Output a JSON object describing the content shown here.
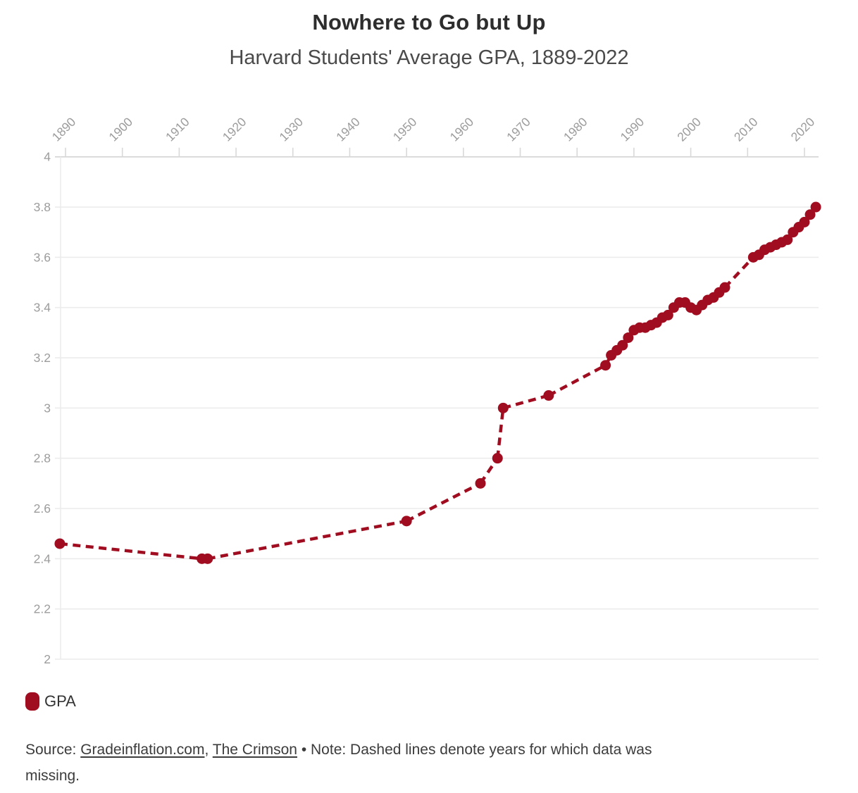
{
  "header": {
    "title": "Nowhere to Go but Up",
    "subtitle": "Harvard Students' Average GPA, 1889-2022"
  },
  "legend": {
    "label": "GPA",
    "color": "#a10d20"
  },
  "footer": {
    "source_prefix": "Source: ",
    "link1": "Gradeinflation.com",
    "separator": ", ",
    "link2": "The Crimson",
    "bullet": " • ",
    "note_line1": "Note: Dashed lines denote years for which data was",
    "note_line2": "missing."
  },
  "chart_data": {
    "type": "line",
    "title": "Nowhere to Go but Up",
    "subtitle": "Harvard Students' Average GPA, 1889-2022",
    "xlabel": "",
    "ylabel": "",
    "xlim": [
      1886,
      2024
    ],
    "ylim": [
      2,
      4
    ],
    "x_ticks": [
      1890,
      1900,
      1910,
      1920,
      1930,
      1940,
      1950,
      1960,
      1970,
      1980,
      1990,
      2000,
      2010,
      2020
    ],
    "y_ticks": [
      {
        "value": 4,
        "label": "4"
      },
      {
        "value": 3.8,
        "label": "3.8"
      },
      {
        "value": 3.6,
        "label": "3.6"
      },
      {
        "value": 3.4,
        "label": "3.4"
      },
      {
        "value": 3.2,
        "label": "3.2"
      },
      {
        "value": 3,
        "label": "3"
      },
      {
        "value": 2.8,
        "label": "2.8"
      },
      {
        "value": 2.6,
        "label": "2.6"
      },
      {
        "value": 2.4,
        "label": "2.4"
      },
      {
        "value": 2.2,
        "label": "2.2"
      },
      {
        "value": 2,
        "label": "2"
      }
    ],
    "grid": "horizontal",
    "legend_position": "bottom-left",
    "line_color": "#a10d20",
    "dashed_meaning": "years for which data was missing (gap to previous point)",
    "series": [
      {
        "name": "GPA",
        "points": [
          [
            1889,
            2.46
          ],
          [
            1914,
            2.4
          ],
          [
            1915,
            2.4
          ],
          [
            1950,
            2.55
          ],
          [
            1963,
            2.7
          ],
          [
            1966,
            2.8
          ],
          [
            1967,
            3.0,
            1
          ],
          [
            1975,
            3.05
          ],
          [
            1985,
            3.17
          ],
          [
            1986,
            3.21
          ],
          [
            1987,
            3.23
          ],
          [
            1988,
            3.25
          ],
          [
            1989,
            3.28
          ],
          [
            1990,
            3.31
          ],
          [
            1991,
            3.32
          ],
          [
            1992,
            3.32
          ],
          [
            1993,
            3.33
          ],
          [
            1994,
            3.34
          ],
          [
            1995,
            3.36
          ],
          [
            1996,
            3.37
          ],
          [
            1997,
            3.4
          ],
          [
            1998,
            3.42
          ],
          [
            1999,
            3.42
          ],
          [
            2000,
            3.4
          ],
          [
            2001,
            3.39
          ],
          [
            2002,
            3.41
          ],
          [
            2003,
            3.43
          ],
          [
            2004,
            3.44
          ],
          [
            2005,
            3.46
          ],
          [
            2006,
            3.48
          ],
          [
            2011,
            3.6
          ],
          [
            2012,
            3.61
          ],
          [
            2013,
            3.63
          ],
          [
            2014,
            3.64
          ],
          [
            2015,
            3.65
          ],
          [
            2016,
            3.66
          ],
          [
            2017,
            3.67
          ],
          [
            2018,
            3.7
          ],
          [
            2019,
            3.72
          ],
          [
            2020,
            3.74
          ],
          [
            2021,
            3.77
          ],
          [
            2022,
            3.8
          ]
        ]
      }
    ]
  }
}
